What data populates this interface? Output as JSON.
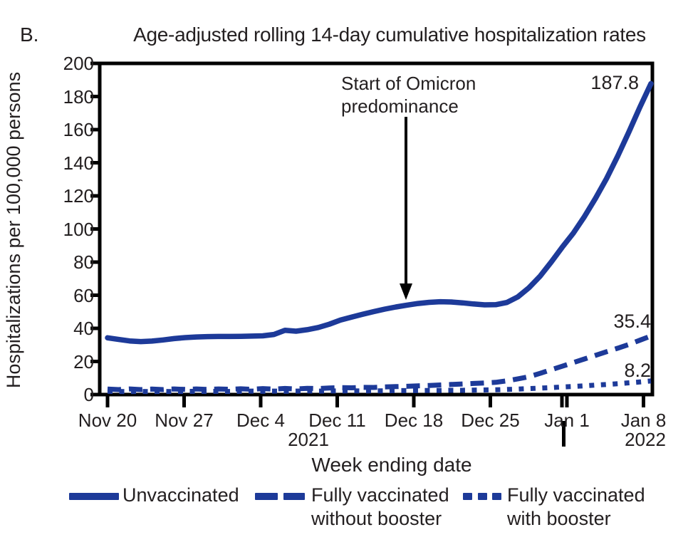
{
  "panel_label": "B.",
  "title": "Age-adjusted rolling 14-day cumulative hospitalization rates",
  "y_axis": {
    "title": "Hospitalizations per 100,000 persons",
    "tick_labels": [
      "0",
      "20",
      "40",
      "60",
      "80",
      "100",
      "120",
      "140",
      "160",
      "180",
      "200"
    ],
    "min": 0,
    "max": 200
  },
  "x_axis": {
    "title": "Week ending date",
    "tick_labels": [
      "Nov 20",
      "Nov 27",
      "Dec 4",
      "Dec 11",
      "Dec 18",
      "Dec 25",
      "Jan 1",
      "Jan 8"
    ],
    "year_left": "2021",
    "year_right": "2022"
  },
  "annotation": {
    "line1": "Start of Omicron",
    "line2": "predominance"
  },
  "end_labels": {
    "unvaccinated": "187.8",
    "fully_vaccinated_without_booster": "35.4",
    "fully_vaccinated_with_booster": "8.2"
  },
  "legend": {
    "items": [
      {
        "line1": "Unvaccinated",
        "line2": "",
        "style": "solid"
      },
      {
        "line1": "Fully vaccinated",
        "line2": "without booster",
        "style": "dashed"
      },
      {
        "line1": "Fully vaccinated",
        "line2": "with booster",
        "style": "dotted"
      }
    ]
  },
  "colors": {
    "series_blue": "#1d3a99",
    "text": "#231f20",
    "axis": "#000000"
  },
  "chart_data": {
    "type": "line",
    "title": "Age-adjusted rolling 14-day cumulative hospitalization rates",
    "xlabel": "Week ending date",
    "ylabel": "Hospitalizations per 100,000 persons",
    "ylim": [
      0,
      200
    ],
    "x_start": "2021-11-20",
    "x_end": "2022-01-08",
    "cadence": "daily",
    "x_tick_labels": [
      "Nov 20",
      "Nov 27",
      "Dec 4",
      "Dec 11",
      "Dec 18",
      "Dec 25",
      "Jan 1",
      "Jan 8"
    ],
    "grid": false,
    "legend_position": "bottom",
    "annotation": {
      "text": "Start of Omicron predominance",
      "points_to_date": "2021-12-18"
    },
    "series": [
      {
        "name": "Unvaccinated",
        "style": "solid",
        "end_value": 187.8,
        "values": [
          34.3,
          33.3,
          32.4,
          32.0,
          32.3,
          33.0,
          33.8,
          34.4,
          34.8,
          35.0,
          35.1,
          35.1,
          35.2,
          35.3,
          35.5,
          36.3,
          38.8,
          38.3,
          39.2,
          40.5,
          42.5,
          45.0,
          46.8,
          48.5,
          50.1,
          51.6,
          52.9,
          54.0,
          55.0,
          55.7,
          56.1,
          55.9,
          55.4,
          54.7,
          54.2,
          54.3,
          55.6,
          59.0,
          64.5,
          71.5,
          80.0,
          89.0,
          97.5,
          107.5,
          118.5,
          130.5,
          144.0,
          158.5,
          173.5,
          187.8
        ]
      },
      {
        "name": "Fully vaccinated without booster",
        "style": "dashed",
        "end_value": 35.4,
        "values": [
          3.3,
          3.0,
          3.4,
          3.0,
          3.3,
          3.0,
          3.4,
          3.1,
          3.4,
          3.1,
          3.4,
          3.2,
          3.5,
          3.2,
          3.6,
          3.3,
          3.7,
          3.4,
          3.8,
          3.6,
          4.0,
          4.2,
          4.1,
          4.4,
          4.3,
          4.6,
          4.8,
          5.0,
          5.3,
          5.5,
          5.8,
          6.1,
          6.4,
          6.7,
          7.0,
          7.4,
          8.3,
          9.5,
          10.8,
          12.8,
          15.0,
          17.1,
          19.3,
          21.5,
          23.7,
          25.9,
          28.0,
          30.3,
          32.8,
          35.4
        ]
      },
      {
        "name": "Fully vaccinated with booster",
        "style": "dotted",
        "end_value": 8.2,
        "values": [
          2.0,
          1.9,
          1.8,
          1.9,
          1.8,
          1.9,
          1.8,
          1.9,
          2.0,
          1.9,
          2.0,
          1.9,
          2.0,
          2.1,
          2.0,
          2.1,
          2.0,
          2.1,
          2.2,
          2.1,
          2.2,
          2.2,
          2.3,
          2.2,
          2.3,
          2.3,
          2.4,
          2.4,
          2.4,
          2.5,
          2.5,
          2.6,
          2.6,
          2.7,
          2.8,
          2.9,
          3.1,
          3.3,
          3.6,
          3.9,
          4.2,
          4.6,
          4.9,
          5.3,
          5.7,
          6.1,
          6.6,
          7.1,
          7.6,
          8.2
        ]
      }
    ]
  }
}
